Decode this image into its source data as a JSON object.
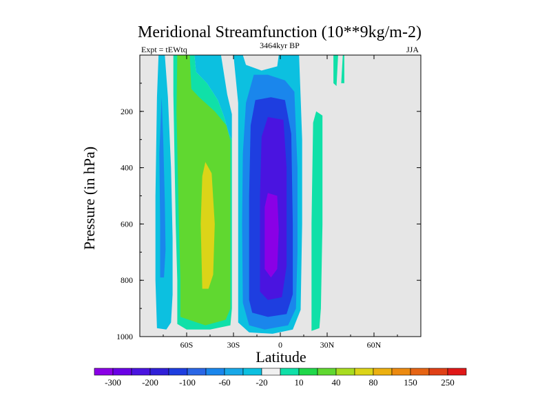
{
  "chart_data": {
    "type": "heatmap",
    "title": "Meridional Streamfunction (10**9kg/m-2)",
    "left_label": "Expt = tEWtq",
    "center_label": "3464kyr BP",
    "right_label": "JJA",
    "xlabel": "Latitude",
    "ylabel": "Pressure (in hPa)",
    "xlim": [
      -90,
      90
    ],
    "ylim": [
      1000,
      0
    ],
    "x_ticks": [
      {
        "value": -60,
        "label": "60S"
      },
      {
        "value": -30,
        "label": "30S"
      },
      {
        "value": 0,
        "label": "0"
      },
      {
        "value": 30,
        "label": "30N"
      },
      {
        "value": 60,
        "label": "60N"
      }
    ],
    "y_ticks": [
      {
        "value": 200,
        "label": "200"
      },
      {
        "value": 400,
        "label": "400"
      },
      {
        "value": 600,
        "label": "600"
      },
      {
        "value": 800,
        "label": "800"
      },
      {
        "value": 1000,
        "label": "1000"
      }
    ],
    "missing_color": "#e6e6e6",
    "colorbar": {
      "colors": [
        "#8a00e6",
        "#6a00e6",
        "#4a14e0",
        "#3020d8",
        "#1e3ee0",
        "#2a66e6",
        "#1a86ec",
        "#18a8e8",
        "#0cc0e0",
        "#f0f0f0",
        "#10e0a8",
        "#20d84a",
        "#60d830",
        "#a8dc20",
        "#dcd418",
        "#ecb010",
        "#ec8a10",
        "#e66414",
        "#e04016",
        "#e01818"
      ],
      "labels": [
        "-300",
        "-200",
        "-100",
        "-60",
        "-20",
        "10",
        "40",
        "80",
        "150",
        "250"
      ]
    },
    "contour_regions": [
      {
        "level": -20,
        "polygon": [
          [
            -79,
            970
          ],
          [
            -80,
            800
          ],
          [
            -80,
            500
          ],
          [
            -79,
            150
          ],
          [
            -78,
            0
          ],
          [
            -74,
            0
          ],
          [
            -72,
            150
          ],
          [
            -70,
            400
          ],
          [
            -69,
            650
          ],
          [
            -69,
            850
          ],
          [
            -70,
            950
          ],
          [
            -73,
            975
          ]
        ]
      },
      {
        "level": -60,
        "polygon": [
          [
            -77,
            790
          ],
          [
            -77,
            600
          ],
          [
            -77.5,
            350
          ],
          [
            -76,
            150
          ],
          [
            -75,
            300
          ],
          [
            -74,
            520
          ],
          [
            -73.5,
            690
          ],
          [
            -74.5,
            790
          ]
        ]
      },
      {
        "level": -20,
        "polygon": [
          [
            -56,
            0
          ],
          [
            -55,
            0
          ],
          [
            -54,
            60
          ],
          [
            -47,
            100
          ],
          [
            -40,
            160
          ],
          [
            -36,
            220
          ],
          [
            -33,
            280
          ],
          [
            -31,
            300
          ],
          [
            -31,
            210
          ],
          [
            -34,
            140
          ],
          [
            -38,
            0
          ],
          [
            -30,
            0
          ],
          [
            -27,
            170
          ],
          [
            -27,
            950
          ],
          [
            -20,
            985
          ],
          [
            -5,
            990
          ],
          [
            8,
            975
          ],
          [
            13,
            905
          ],
          [
            14,
            600
          ],
          [
            14,
            300
          ],
          [
            13,
            150
          ],
          [
            12,
            0
          ],
          [
            -1,
            0
          ],
          [
            -2,
            40
          ],
          [
            -12,
            55
          ],
          [
            -22,
            35
          ],
          [
            -24,
            0
          ],
          [
            -47,
            0
          ],
          [
            -56,
            0
          ]
        ]
      },
      {
        "level": -60,
        "polygon": [
          [
            -24,
            880
          ],
          [
            -24.5,
            600
          ],
          [
            -24,
            350
          ],
          [
            -22,
            170
          ],
          [
            -17,
            70
          ],
          [
            -8,
            70
          ],
          [
            3,
            90
          ],
          [
            9,
            130
          ],
          [
            11,
            400
          ],
          [
            11,
            700
          ],
          [
            10,
            900
          ],
          [
            5,
            960
          ],
          [
            -10,
            975
          ],
          [
            -20,
            960
          ]
        ]
      },
      {
        "level": -100,
        "polygon": [
          [
            -20,
            870
          ],
          [
            -20,
            500
          ],
          [
            -19,
            250
          ],
          [
            -16,
            160
          ],
          [
            -6,
            150
          ],
          [
            3,
            160
          ],
          [
            7,
            280
          ],
          [
            8,
            600
          ],
          [
            8,
            850
          ],
          [
            4,
            920
          ],
          [
            -8,
            930
          ],
          [
            -18,
            915
          ]
        ]
      },
      {
        "level": -200,
        "polygon": [
          [
            -13,
            840
          ],
          [
            -13,
            500
          ],
          [
            -12,
            290
          ],
          [
            -8,
            220
          ],
          [
            2,
            230
          ],
          [
            4,
            400
          ],
          [
            4,
            750
          ],
          [
            1,
            860
          ],
          [
            -8,
            870
          ]
        ]
      },
      {
        "level": -300,
        "polygon": [
          [
            -10,
            760
          ],
          [
            -10,
            540
          ],
          [
            -8,
            490
          ],
          [
            -2,
            500
          ],
          [
            -1,
            620
          ],
          [
            -2,
            760
          ],
          [
            -6,
            790
          ]
        ]
      },
      {
        "level": 10,
        "polygon": [
          [
            -66,
            955
          ],
          [
            -66,
            800
          ],
          [
            -67,
            600
          ],
          [
            -68,
            300
          ],
          [
            -68.5,
            140
          ],
          [
            -68.5,
            0
          ],
          [
            -55,
            0
          ],
          [
            -54,
            60
          ],
          [
            -47,
            100
          ],
          [
            -40,
            160
          ],
          [
            -36,
            220
          ],
          [
            -33,
            280
          ],
          [
            -31,
            300
          ],
          [
            -31,
            600
          ],
          [
            -31,
            900
          ],
          [
            -32,
            960
          ],
          [
            -45,
            975
          ],
          [
            -60,
            975
          ]
        ]
      },
      {
        "level": 40,
        "polygon": [
          [
            -64,
            930
          ],
          [
            -64,
            800
          ],
          [
            -65,
            600
          ],
          [
            -66.5,
            200
          ],
          [
            -66,
            0
          ],
          [
            -58,
            0
          ],
          [
            -57,
            120
          ],
          [
            -52,
            150
          ],
          [
            -42,
            200
          ],
          [
            -34.5,
            250
          ],
          [
            -32,
            305
          ],
          [
            -32,
            600
          ],
          [
            -32,
            900
          ],
          [
            -35,
            940
          ],
          [
            -48,
            960
          ]
        ]
      },
      {
        "level": 80,
        "polygon": [
          [
            -50,
            830
          ],
          [
            -51,
            600
          ],
          [
            -50,
            430
          ],
          [
            -48,
            380
          ],
          [
            -44,
            420
          ],
          [
            -42,
            600
          ],
          [
            -43,
            780
          ],
          [
            -46,
            830
          ]
        ]
      },
      {
        "level": 10,
        "polygon": [
          [
            20,
            980
          ],
          [
            20,
            600
          ],
          [
            21,
            240
          ],
          [
            23,
            200
          ],
          [
            27,
            215
          ],
          [
            27,
            600
          ],
          [
            26,
            900
          ],
          [
            25,
            970
          ]
        ]
      },
      {
        "level": 10,
        "polygon": [
          [
            34,
            100
          ],
          [
            34,
            0
          ],
          [
            37,
            0
          ],
          [
            36,
            110
          ]
        ]
      },
      {
        "level": 10,
        "polygon": [
          [
            39,
            100
          ],
          [
            40,
            0
          ],
          [
            41,
            0
          ],
          [
            41,
            100
          ]
        ]
      }
    ]
  }
}
